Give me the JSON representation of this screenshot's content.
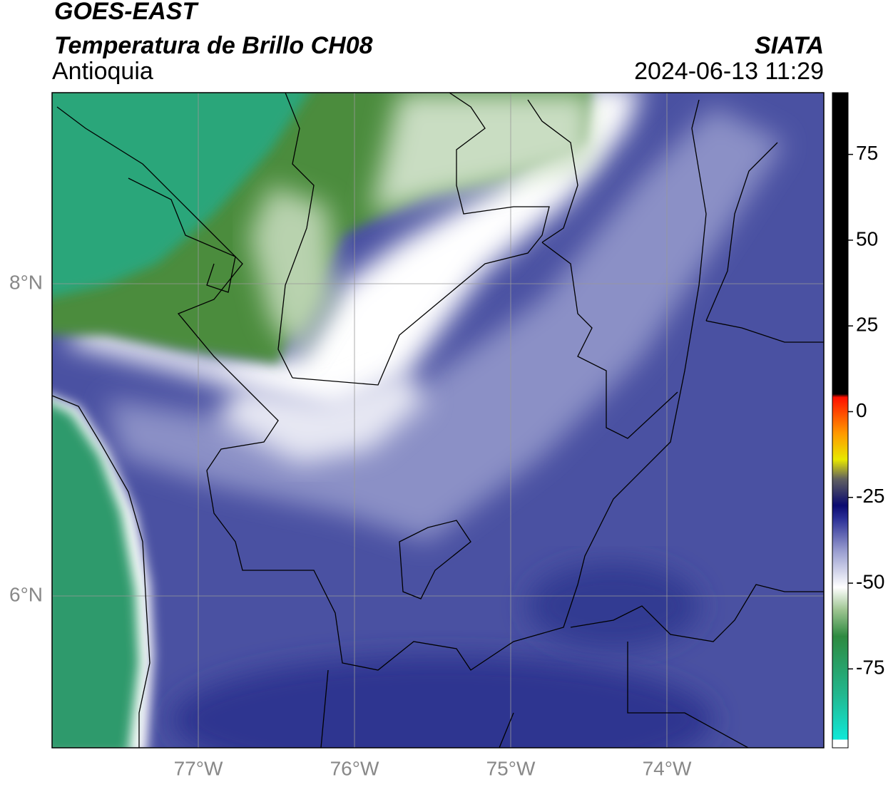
{
  "header": {
    "title": "GOES-EAST",
    "subtitle": "Temperatura de Brillo CH08",
    "region": "Antioquia",
    "source": "SIATA",
    "timestamp": "2024-06-13 11:29"
  },
  "map": {
    "lat_labels": [
      "8°N",
      "6°N"
    ],
    "lon_labels": [
      "77°W",
      "76°W",
      "75°W",
      "74°W"
    ]
  },
  "colorbar": {
    "lim": [
      -98,
      93
    ],
    "ticks": [
      75,
      50,
      25,
      0,
      -25,
      -50,
      -75
    ]
  }
}
